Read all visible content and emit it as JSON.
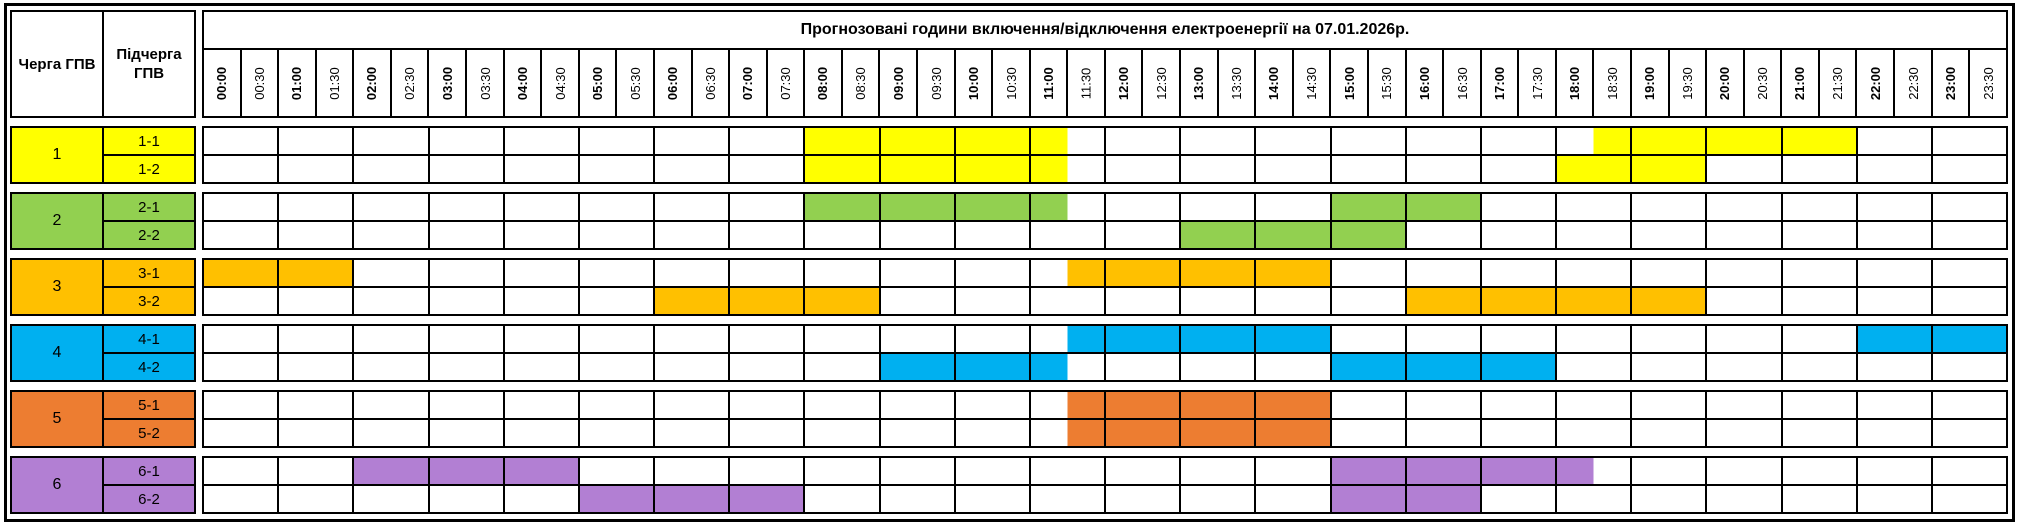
{
  "table": {
    "title": "Прогнозовані години включення/відключення електроенергії на 07.01.2026р.",
    "corner": {
      "queue_header": "Черга ГПВ",
      "subqueue_header": "Підчерга ГПВ"
    },
    "slot_minutes": 30,
    "time_slots": [
      "00:00",
      "00:30",
      "01:00",
      "01:30",
      "02:00",
      "02:30",
      "03:00",
      "03:30",
      "04:00",
      "04:30",
      "05:00",
      "05:30",
      "06:00",
      "06:30",
      "07:00",
      "07:30",
      "08:00",
      "08:30",
      "09:00",
      "09:30",
      "10:00",
      "10:30",
      "11:00",
      "11:30",
      "12:00",
      "12:30",
      "13:00",
      "13:30",
      "14:00",
      "14:30",
      "15:00",
      "15:30",
      "16:00",
      "16:30",
      "17:00",
      "17:30",
      "18:00",
      "18:30",
      "19:00",
      "19:30",
      "20:00",
      "20:30",
      "21:00",
      "21:30",
      "22:00",
      "22:30",
      "23:00",
      "23:30"
    ],
    "groups": [
      {
        "queue": "1",
        "color": "#FFFF00",
        "rows": [
          {
            "label": "1-1",
            "outage_intervals": [
              [
                16,
                23
              ],
              [
                37,
                44
              ]
            ],
            "outage_times": [
              "08:00–11:30",
              "18:30–22:00"
            ]
          },
          {
            "label": "1-2",
            "outage_intervals": [
              [
                16,
                23
              ],
              [
                36,
                40
              ]
            ],
            "outage_times": [
              "08:00–11:30",
              "18:00–20:00"
            ]
          }
        ]
      },
      {
        "queue": "2",
        "color": "#92D050",
        "rows": [
          {
            "label": "2-1",
            "outage_intervals": [
              [
                16,
                23
              ],
              [
                30,
                34
              ]
            ],
            "outage_times": [
              "08:00–11:30",
              "15:00–17:00"
            ]
          },
          {
            "label": "2-2",
            "outage_intervals": [
              [
                26,
                32
              ]
            ],
            "outage_times": [
              "13:00–16:00"
            ]
          }
        ]
      },
      {
        "queue": "3",
        "color": "#FFC000",
        "rows": [
          {
            "label": "3-1",
            "outage_intervals": [
              [
                0,
                4
              ],
              [
                23,
                30
              ]
            ],
            "outage_times": [
              "00:00–02:00",
              "11:30–15:00"
            ]
          },
          {
            "label": "3-2",
            "outage_intervals": [
              [
                12,
                18
              ],
              [
                32,
                40
              ]
            ],
            "outage_times": [
              "06:00–09:00",
              "16:00–20:00"
            ]
          }
        ]
      },
      {
        "queue": "4",
        "color": "#00B0F0",
        "rows": [
          {
            "label": "4-1",
            "outage_intervals": [
              [
                23,
                30
              ],
              [
                44,
                48
              ]
            ],
            "outage_times": [
              "11:30–15:00",
              "22:00–24:00"
            ]
          },
          {
            "label": "4-2",
            "outage_intervals": [
              [
                18,
                23
              ],
              [
                30,
                36
              ]
            ],
            "outage_times": [
              "09:00–11:30",
              "15:00–18:00"
            ]
          }
        ]
      },
      {
        "queue": "5",
        "color": "#ED7D31",
        "rows": [
          {
            "label": "5-1",
            "outage_intervals": [
              [
                23,
                30
              ]
            ],
            "outage_times": [
              "11:30–15:00"
            ]
          },
          {
            "label": "5-2",
            "outage_intervals": [
              [
                23,
                30
              ]
            ],
            "outage_times": [
              "11:30–15:00"
            ]
          }
        ]
      },
      {
        "queue": "6",
        "color": "#B27FD3",
        "rows": [
          {
            "label": "6-1",
            "outage_intervals": [
              [
                4,
                10
              ],
              [
                30,
                37
              ]
            ],
            "outage_times": [
              "02:00–05:00",
              "15:00–18:30"
            ]
          },
          {
            "label": "6-2",
            "outage_intervals": [
              [
                10,
                16
              ],
              [
                30,
                34
              ]
            ],
            "outage_times": [
              "05:00–08:00",
              "15:00–17:00"
            ]
          }
        ]
      }
    ]
  }
}
